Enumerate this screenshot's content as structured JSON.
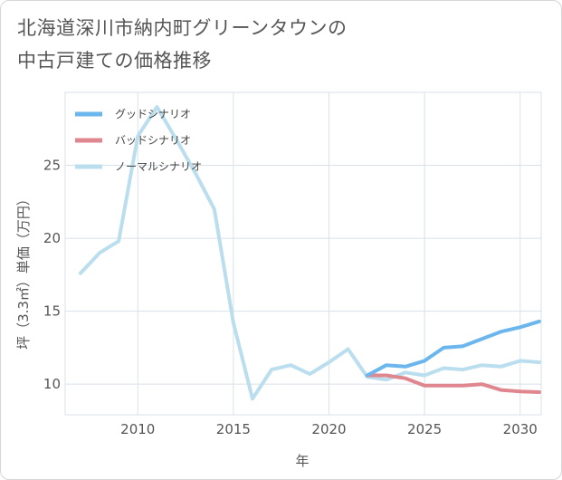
{
  "title_lines": [
    "北海道深川市納内町グリーンタウンの",
    "中古戸建ての価格推移"
  ],
  "chart_data": {
    "type": "line",
    "xlabel": "年",
    "ylabel": "坪（3.3㎡）単価（万円）",
    "xlim": [
      2006.2,
      2031.1
    ],
    "ylim": [
      7.9,
      30.0
    ],
    "x_ticks": [
      2010,
      2015,
      2020,
      2025,
      2030
    ],
    "y_ticks": [
      10,
      15,
      20,
      25
    ],
    "grid": true,
    "legend_position": "top-left",
    "series": [
      {
        "name": "グッドシナリオ",
        "color": "#6cb6ee",
        "x": [
          2022,
          2023,
          2024,
          2025,
          2026,
          2027,
          2028,
          2029,
          2030,
          2031
        ],
        "y": [
          10.6,
          11.3,
          11.2,
          11.6,
          12.5,
          12.6,
          13.1,
          13.6,
          13.9,
          14.3
        ]
      },
      {
        "name": "バッドシナリオ",
        "color": "#e0868f",
        "x": [
          2022,
          2023,
          2024,
          2025,
          2026,
          2027,
          2028,
          2029,
          2030,
          2031
        ],
        "y": [
          10.6,
          10.6,
          10.4,
          9.9,
          9.9,
          9.9,
          10.0,
          9.6,
          9.5,
          9.45
        ]
      },
      {
        "name": "ノーマルシナリオ",
        "color": "#badeee",
        "x": [
          2007,
          2008,
          2009,
          2010,
          2011,
          2012,
          2013,
          2014,
          2015,
          2016,
          2017,
          2018,
          2019,
          2020,
          2021,
          2022,
          2023,
          2024,
          2025,
          2026,
          2027,
          2028,
          2029,
          2030,
          2031
        ],
        "y": [
          17.6,
          19.0,
          19.8,
          27.0,
          29.0,
          26.8,
          24.5,
          22.0,
          14.2,
          9.0,
          11.0,
          11.3,
          10.7,
          11.5,
          12.4,
          10.5,
          10.3,
          10.8,
          10.6,
          11.1,
          11.0,
          11.3,
          11.2,
          11.6,
          11.5
        ]
      }
    ]
  }
}
